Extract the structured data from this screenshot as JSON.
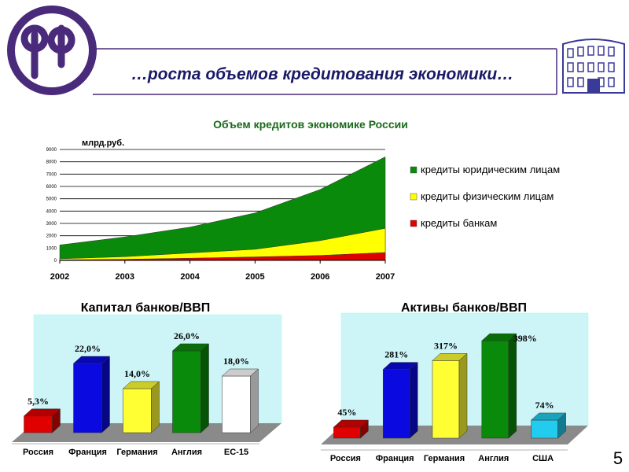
{
  "slide": {
    "title": "…роста объемов кредитования экономики…",
    "page_number": "5",
    "logo_text": "pb",
    "colors": {
      "frame": "#4a2a7a",
      "title": "#1a1a66",
      "building": "#3a3a99"
    }
  },
  "chart_data": [
    {
      "type": "area",
      "title": "Объем кредитов экономике России",
      "ylabel": "млрд.руб.",
      "xlabel": "",
      "x": [
        "2002",
        "2003",
        "2004",
        "2005",
        "2006",
        "2007"
      ],
      "ylim": [
        0,
        9000
      ],
      "yticks": [
        0,
        1000,
        2000,
        3000,
        4000,
        5000,
        6000,
        7000,
        8000,
        9000
      ],
      "stacked": false,
      "grid": true,
      "legend_position": "right",
      "series": [
        {
          "name": "кредиты юридическим лицам",
          "color": "#0a8a0a",
          "values": [
            1250,
            1900,
            2700,
            3850,
            5750,
            8400
          ]
        },
        {
          "name": "кредиты физическим лицам",
          "color": "#ffff00",
          "values": [
            130,
            300,
            600,
            900,
            1600,
            2600
          ]
        },
        {
          "name": "кредиты банкам",
          "color": "#e00000",
          "values": [
            40,
            90,
            180,
            280,
            400,
            640
          ]
        }
      ]
    },
    {
      "type": "bar",
      "title": "Капитал банков/ВВП",
      "categories": [
        "Россия",
        "Франция",
        "Германия",
        "Англия",
        "ЕС-15"
      ],
      "values": [
        5.3,
        22.0,
        14.0,
        26.0,
        18.0
      ],
      "labels": [
        "5,3%",
        "22,0%",
        "14,0%",
        "26,0%",
        "18,0%"
      ],
      "colors": [
        "#e00000",
        "#0a0ae0",
        "#ffff33",
        "#0a8a0a",
        "#ffffff"
      ],
      "ylim": [
        0,
        30
      ]
    },
    {
      "type": "bar",
      "title": "Активы банков/ВВП",
      "categories": [
        "Россия",
        "Франция",
        "Германия",
        "Англия",
        "США"
      ],
      "values": [
        45,
        281,
        317,
        398,
        74
      ],
      "labels": [
        "45%",
        "281%",
        "317%",
        "398%",
        "74%"
      ],
      "colors": [
        "#e00000",
        "#0a0ae0",
        "#ffff33",
        "#0a8a0a",
        "#22ccee"
      ],
      "ylim": [
        0,
        450
      ]
    }
  ]
}
